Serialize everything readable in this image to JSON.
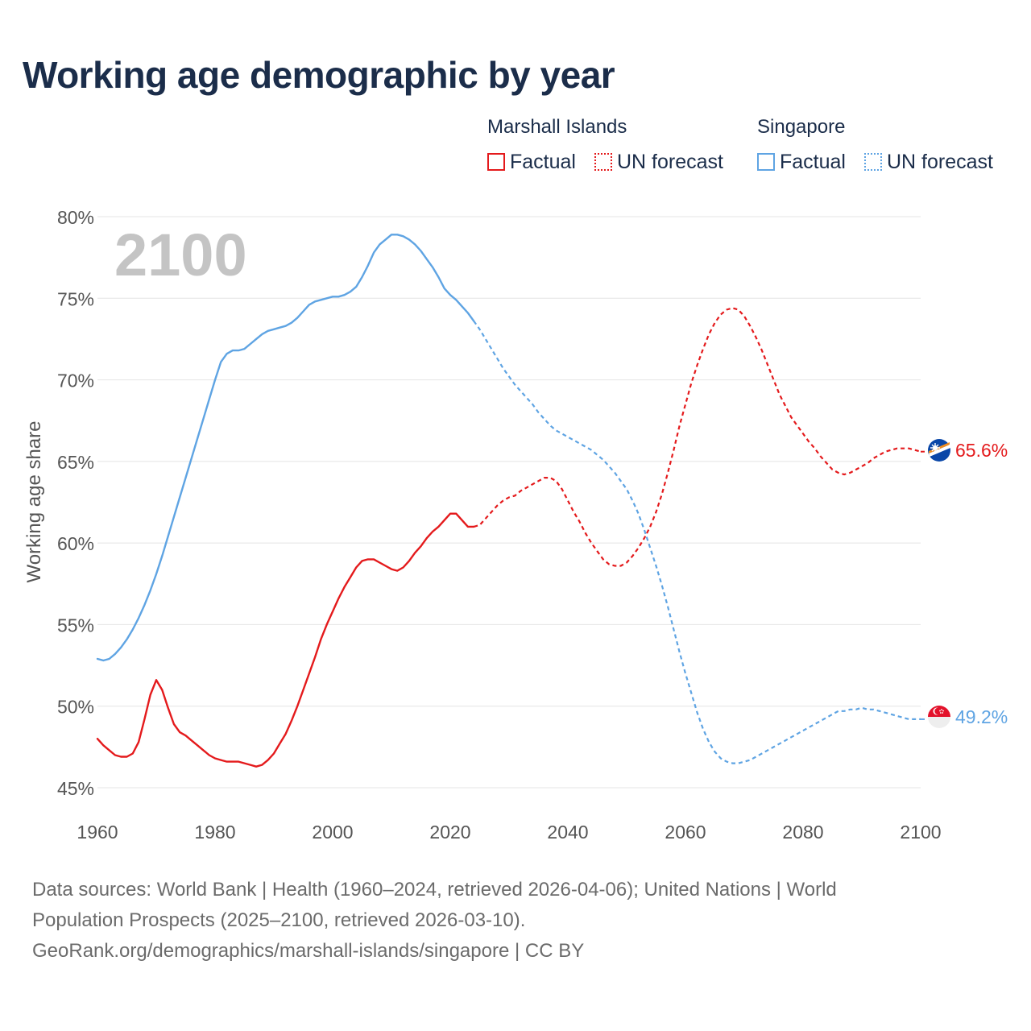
{
  "title": "Working age demographic by year",
  "legend": {
    "groups": [
      {
        "name": "Marshall Islands",
        "factual_label": "Factual",
        "forecast_label": "UN forecast",
        "color": "#e41a1c"
      },
      {
        "name": "Singapore",
        "factual_label": "Factual",
        "forecast_label": "UN forecast",
        "color": "#5fa4e3"
      }
    ]
  },
  "chart_data": {
    "type": "line",
    "title": "Working age demographic by year",
    "xlabel": "",
    "ylabel": "Working age share",
    "xlim": [
      1960,
      2100
    ],
    "ylim": [
      45,
      80
    ],
    "x_ticks": [
      1960,
      1980,
      2000,
      2020,
      2040,
      2060,
      2080,
      2100
    ],
    "x_tick_labels": [
      "1960",
      "1980",
      "2000",
      "2020",
      "2040",
      "2060",
      "2080",
      "2100"
    ],
    "y_ticks": [
      45,
      50,
      55,
      60,
      65,
      70,
      75,
      80
    ],
    "y_tick_labels": [
      "45%",
      "50%",
      "55%",
      "60%",
      "65%",
      "70%",
      "75%",
      "80%"
    ],
    "grid": true,
    "year_overlay": "2100",
    "factual_end_year": 2024,
    "series": [
      {
        "name": "Marshall Islands",
        "color": "#e41a1c",
        "end_label": "65.6%",
        "points": [
          [
            1960,
            48.0
          ],
          [
            1961,
            47.6
          ],
          [
            1962,
            47.3
          ],
          [
            1963,
            47.0
          ],
          [
            1964,
            46.9
          ],
          [
            1965,
            46.9
          ],
          [
            1966,
            47.1
          ],
          [
            1967,
            47.8
          ],
          [
            1968,
            49.2
          ],
          [
            1969,
            50.7
          ],
          [
            1970,
            51.6
          ],
          [
            1971,
            51.0
          ],
          [
            1972,
            49.9
          ],
          [
            1973,
            48.9
          ],
          [
            1974,
            48.4
          ],
          [
            1975,
            48.2
          ],
          [
            1976,
            47.9
          ],
          [
            1977,
            47.6
          ],
          [
            1978,
            47.3
          ],
          [
            1979,
            47.0
          ],
          [
            1980,
            46.8
          ],
          [
            1981,
            46.7
          ],
          [
            1982,
            46.6
          ],
          [
            1983,
            46.6
          ],
          [
            1984,
            46.6
          ],
          [
            1985,
            46.5
          ],
          [
            1986,
            46.4
          ],
          [
            1987,
            46.3
          ],
          [
            1988,
            46.4
          ],
          [
            1989,
            46.7
          ],
          [
            1990,
            47.1
          ],
          [
            1991,
            47.7
          ],
          [
            1992,
            48.3
          ],
          [
            1993,
            49.1
          ],
          [
            1994,
            50.0
          ],
          [
            1995,
            51.0
          ],
          [
            1996,
            52.0
          ],
          [
            1997,
            53.0
          ],
          [
            1998,
            54.1
          ],
          [
            1999,
            55.0
          ],
          [
            2000,
            55.8
          ],
          [
            2001,
            56.6
          ],
          [
            2002,
            57.3
          ],
          [
            2003,
            57.9
          ],
          [
            2004,
            58.5
          ],
          [
            2005,
            58.9
          ],
          [
            2006,
            59.0
          ],
          [
            2007,
            59.0
          ],
          [
            2008,
            58.8
          ],
          [
            2009,
            58.6
          ],
          [
            2010,
            58.4
          ],
          [
            2011,
            58.3
          ],
          [
            2012,
            58.5
          ],
          [
            2013,
            58.9
          ],
          [
            2014,
            59.4
          ],
          [
            2015,
            59.8
          ],
          [
            2016,
            60.3
          ],
          [
            2017,
            60.7
          ],
          [
            2018,
            61.0
          ],
          [
            2019,
            61.4
          ],
          [
            2020,
            61.8
          ],
          [
            2021,
            61.8
          ],
          [
            2022,
            61.4
          ],
          [
            2023,
            61.0
          ],
          [
            2024,
            61.0
          ],
          [
            2025,
            61.1
          ],
          [
            2026,
            61.5
          ],
          [
            2027,
            61.9
          ],
          [
            2028,
            62.3
          ],
          [
            2029,
            62.6
          ],
          [
            2030,
            62.8
          ],
          [
            2031,
            62.9
          ],
          [
            2032,
            63.2
          ],
          [
            2033,
            63.4
          ],
          [
            2034,
            63.6
          ],
          [
            2035,
            63.8
          ],
          [
            2036,
            64.0
          ],
          [
            2037,
            64.0
          ],
          [
            2038,
            63.8
          ],
          [
            2039,
            63.3
          ],
          [
            2040,
            62.6
          ],
          [
            2041,
            61.9
          ],
          [
            2042,
            61.3
          ],
          [
            2043,
            60.6
          ],
          [
            2044,
            60.0
          ],
          [
            2045,
            59.5
          ],
          [
            2046,
            59.0
          ],
          [
            2047,
            58.7
          ],
          [
            2048,
            58.6
          ],
          [
            2049,
            58.6
          ],
          [
            2050,
            58.8
          ],
          [
            2051,
            59.2
          ],
          [
            2052,
            59.7
          ],
          [
            2053,
            60.3
          ],
          [
            2054,
            61.0
          ],
          [
            2055,
            61.9
          ],
          [
            2056,
            63.0
          ],
          [
            2057,
            64.3
          ],
          [
            2058,
            65.7
          ],
          [
            2059,
            67.2
          ],
          [
            2060,
            68.5
          ],
          [
            2061,
            69.8
          ],
          [
            2062,
            70.9
          ],
          [
            2063,
            71.9
          ],
          [
            2064,
            72.8
          ],
          [
            2065,
            73.5
          ],
          [
            2066,
            74.0
          ],
          [
            2067,
            74.3
          ],
          [
            2068,
            74.4
          ],
          [
            2069,
            74.3
          ],
          [
            2070,
            73.9
          ],
          [
            2071,
            73.3
          ],
          [
            2072,
            72.6
          ],
          [
            2073,
            71.8
          ],
          [
            2074,
            70.9
          ],
          [
            2075,
            70.0
          ],
          [
            2076,
            69.1
          ],
          [
            2077,
            68.4
          ],
          [
            2078,
            67.7
          ],
          [
            2079,
            67.2
          ],
          [
            2080,
            66.7
          ],
          [
            2081,
            66.2
          ],
          [
            2082,
            65.8
          ],
          [
            2083,
            65.3
          ],
          [
            2084,
            64.9
          ],
          [
            2085,
            64.5
          ],
          [
            2086,
            64.3
          ],
          [
            2087,
            64.2
          ],
          [
            2088,
            64.3
          ],
          [
            2089,
            64.5
          ],
          [
            2090,
            64.7
          ],
          [
            2091,
            64.9
          ],
          [
            2092,
            65.2
          ],
          [
            2093,
            65.4
          ],
          [
            2094,
            65.6
          ],
          [
            2095,
            65.7
          ],
          [
            2096,
            65.8
          ],
          [
            2097,
            65.8
          ],
          [
            2098,
            65.8
          ],
          [
            2099,
            65.7
          ],
          [
            2100,
            65.6
          ]
        ]
      },
      {
        "name": "Singapore",
        "color": "#5fa4e3",
        "end_label": "49.2%",
        "points": [
          [
            1960,
            52.9
          ],
          [
            1961,
            52.8
          ],
          [
            1962,
            52.9
          ],
          [
            1963,
            53.2
          ],
          [
            1964,
            53.6
          ],
          [
            1965,
            54.1
          ],
          [
            1966,
            54.7
          ],
          [
            1967,
            55.4
          ],
          [
            1968,
            56.2
          ],
          [
            1969,
            57.1
          ],
          [
            1970,
            58.1
          ],
          [
            1971,
            59.2
          ],
          [
            1972,
            60.4
          ],
          [
            1973,
            61.6
          ],
          [
            1974,
            62.8
          ],
          [
            1975,
            64.0
          ],
          [
            1976,
            65.2
          ],
          [
            1977,
            66.4
          ],
          [
            1978,
            67.6
          ],
          [
            1979,
            68.8
          ],
          [
            1980,
            70.0
          ],
          [
            1981,
            71.1
          ],
          [
            1982,
            71.6
          ],
          [
            1983,
            71.8
          ],
          [
            1984,
            71.8
          ],
          [
            1985,
            71.9
          ],
          [
            1986,
            72.2
          ],
          [
            1987,
            72.5
          ],
          [
            1988,
            72.8
          ],
          [
            1989,
            73.0
          ],
          [
            1990,
            73.1
          ],
          [
            1991,
            73.2
          ],
          [
            1992,
            73.3
          ],
          [
            1993,
            73.5
          ],
          [
            1994,
            73.8
          ],
          [
            1995,
            74.2
          ],
          [
            1996,
            74.6
          ],
          [
            1997,
            74.8
          ],
          [
            1998,
            74.9
          ],
          [
            1999,
            75.0
          ],
          [
            2000,
            75.1
          ],
          [
            2001,
            75.1
          ],
          [
            2002,
            75.2
          ],
          [
            2003,
            75.4
          ],
          [
            2004,
            75.7
          ],
          [
            2005,
            76.3
          ],
          [
            2006,
            77.0
          ],
          [
            2007,
            77.8
          ],
          [
            2008,
            78.3
          ],
          [
            2009,
            78.6
          ],
          [
            2010,
            78.9
          ],
          [
            2011,
            78.9
          ],
          [
            2012,
            78.8
          ],
          [
            2013,
            78.6
          ],
          [
            2014,
            78.3
          ],
          [
            2015,
            77.9
          ],
          [
            2016,
            77.4
          ],
          [
            2017,
            76.9
          ],
          [
            2018,
            76.3
          ],
          [
            2019,
            75.6
          ],
          [
            2020,
            75.2
          ],
          [
            2021,
            74.9
          ],
          [
            2022,
            74.5
          ],
          [
            2023,
            74.1
          ],
          [
            2024,
            73.6
          ],
          [
            2025,
            73.1
          ],
          [
            2026,
            72.5
          ],
          [
            2027,
            71.9
          ],
          [
            2028,
            71.3
          ],
          [
            2029,
            70.7
          ],
          [
            2030,
            70.2
          ],
          [
            2031,
            69.7
          ],
          [
            2032,
            69.3
          ],
          [
            2033,
            68.9
          ],
          [
            2034,
            68.5
          ],
          [
            2035,
            68.0
          ],
          [
            2036,
            67.6
          ],
          [
            2037,
            67.2
          ],
          [
            2038,
            66.9
          ],
          [
            2039,
            66.7
          ],
          [
            2040,
            66.5
          ],
          [
            2041,
            66.3
          ],
          [
            2042,
            66.1
          ],
          [
            2043,
            65.9
          ],
          [
            2044,
            65.7
          ],
          [
            2045,
            65.4
          ],
          [
            2046,
            65.1
          ],
          [
            2047,
            64.7
          ],
          [
            2048,
            64.3
          ],
          [
            2049,
            63.8
          ],
          [
            2050,
            63.3
          ],
          [
            2051,
            62.6
          ],
          [
            2052,
            61.8
          ],
          [
            2053,
            60.8
          ],
          [
            2054,
            59.7
          ],
          [
            2055,
            58.6
          ],
          [
            2056,
            57.4
          ],
          [
            2057,
            56.1
          ],
          [
            2058,
            54.7
          ],
          [
            2059,
            53.3
          ],
          [
            2060,
            52.0
          ],
          [
            2061,
            50.8
          ],
          [
            2062,
            49.6
          ],
          [
            2063,
            48.6
          ],
          [
            2064,
            47.8
          ],
          [
            2065,
            47.2
          ],
          [
            2066,
            46.8
          ],
          [
            2067,
            46.6
          ],
          [
            2068,
            46.5
          ],
          [
            2069,
            46.5
          ],
          [
            2070,
            46.6
          ],
          [
            2071,
            46.7
          ],
          [
            2072,
            46.9
          ],
          [
            2073,
            47.1
          ],
          [
            2074,
            47.3
          ],
          [
            2075,
            47.5
          ],
          [
            2076,
            47.7
          ],
          [
            2077,
            47.9
          ],
          [
            2078,
            48.1
          ],
          [
            2079,
            48.3
          ],
          [
            2080,
            48.5
          ],
          [
            2081,
            48.7
          ],
          [
            2082,
            48.9
          ],
          [
            2083,
            49.1
          ],
          [
            2084,
            49.3
          ],
          [
            2085,
            49.5
          ],
          [
            2086,
            49.7
          ],
          [
            2087,
            49.7
          ],
          [
            2088,
            49.8
          ],
          [
            2089,
            49.8
          ],
          [
            2090,
            49.9
          ],
          [
            2091,
            49.8
          ],
          [
            2092,
            49.8
          ],
          [
            2093,
            49.7
          ],
          [
            2094,
            49.6
          ],
          [
            2095,
            49.5
          ],
          [
            2096,
            49.4
          ],
          [
            2097,
            49.3
          ],
          [
            2098,
            49.2
          ],
          [
            2099,
            49.2
          ],
          [
            2100,
            49.2
          ]
        ]
      }
    ]
  },
  "footer": {
    "line1": "Data sources: World Bank | Health (1960–2024, retrieved 2026-04-06); United Nations | World",
    "line2": "Population Prospects (2025–2100, retrieved 2026-03-10).",
    "line3": "GeoRank.org/demographics/marshall-islands/singapore | CC BY"
  }
}
